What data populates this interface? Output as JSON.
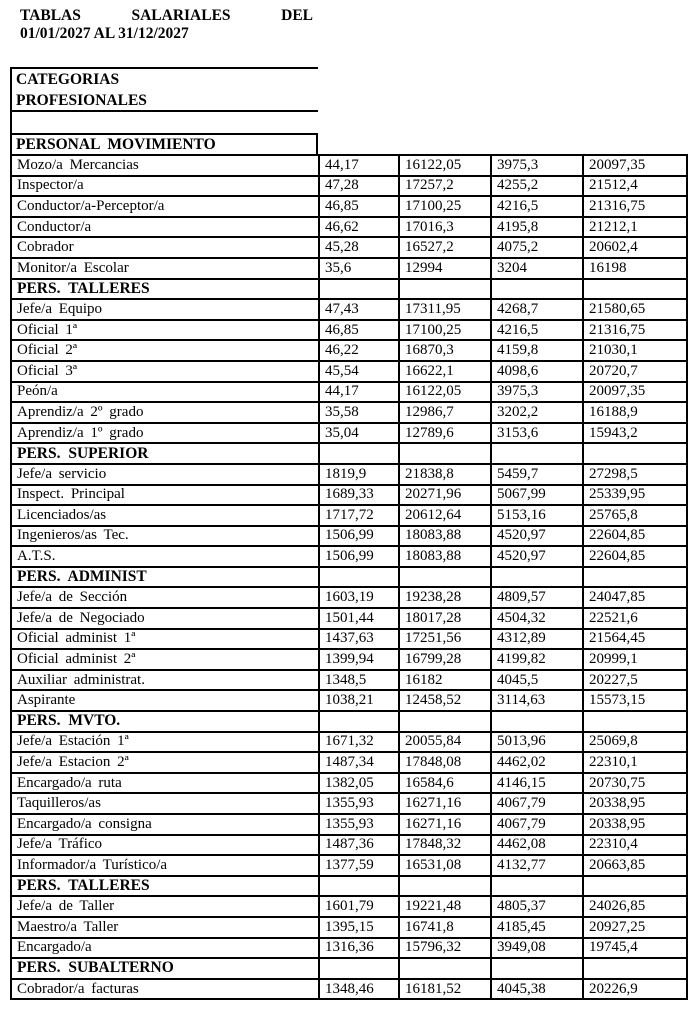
{
  "title": {
    "line1_words": [
      "TABLAS",
      "SALARIALES",
      "DEL"
    ],
    "line2": "01/01/2027 AL 31/12/2027"
  },
  "category_header": {
    "line1": "CATEGORIAS",
    "line2": "PROFESIONALES"
  },
  "table": {
    "groups": [
      {
        "header": "PERSONAL MOVIMIENTO",
        "placement": "outside",
        "rows": [
          {
            "label": "Mozo/a Mercancias",
            "values": [
              "44,17",
              "16122,05",
              "3975,3",
              "20097,35"
            ]
          },
          {
            "label": "Inspector/a",
            "values": [
              "47,28",
              "17257,2",
              "4255,2",
              "21512,4"
            ]
          },
          {
            "label": "Conductor/a-Perceptor/a",
            "values": [
              "46,85",
              "17100,25",
              "4216,5",
              "21316,75"
            ]
          },
          {
            "label": "Conductor/a",
            "values": [
              "46,62",
              "17016,3",
              "4195,8",
              "21212,1"
            ]
          },
          {
            "label": "Cobrador",
            "values": [
              "45,28",
              "16527,2",
              "4075,2",
              "20602,4"
            ]
          },
          {
            "label": "Monitor/a Escolar",
            "values": [
              "35,6",
              "12994",
              "3204",
              "16198"
            ]
          }
        ]
      },
      {
        "header": "PERS. TALLERES",
        "placement": "inside",
        "rows": [
          {
            "label": "Jefe/a Equipo",
            "values": [
              "47,43",
              "17311,95",
              "4268,7",
              "21580,65"
            ]
          },
          {
            "label": "Oficial 1ª",
            "values": [
              "46,85",
              "17100,25",
              "4216,5",
              "21316,75"
            ]
          },
          {
            "label": "Oficial 2ª",
            "values": [
              "46,22",
              "16870,3",
              "4159,8",
              "21030,1"
            ]
          },
          {
            "label": "Oficial 3ª",
            "values": [
              "45,54",
              "16622,1",
              "4098,6",
              "20720,7"
            ]
          },
          {
            "label": "Peón/a",
            "values": [
              "44,17",
              "16122,05",
              "3975,3",
              "20097,35"
            ]
          },
          {
            "label": "Aprendiz/a 2º grado",
            "values": [
              "35,58",
              "12986,7",
              "3202,2",
              "16188,9"
            ]
          },
          {
            "label": "Aprendiz/a 1º grado",
            "values": [
              "35,04",
              "12789,6",
              "3153,6",
              "15943,2"
            ]
          }
        ]
      },
      {
        "header": "PERS. SUPERIOR",
        "placement": "inside",
        "rows": [
          {
            "label": "Jefe/a servicio",
            "values": [
              "1819,9",
              "21838,8",
              "5459,7",
              "27298,5"
            ]
          },
          {
            "label": "Inspect. Principal",
            "values": [
              "1689,33",
              "20271,96",
              "5067,99",
              "25339,95"
            ]
          },
          {
            "label": "Licenciados/as",
            "values": [
              "1717,72",
              "20612,64",
              "5153,16",
              "25765,8"
            ]
          },
          {
            "label": "Ingenieros/as Tec.",
            "values": [
              "1506,99",
              "18083,88",
              "4520,97",
              "22604,85"
            ]
          },
          {
            "label": "A.T.S.",
            "values": [
              "1506,99",
              "18083,88",
              "4520,97",
              "22604,85"
            ]
          }
        ]
      },
      {
        "header": "PERS. ADMINIST",
        "placement": "inside",
        "rows": [
          {
            "label": "Jefe/a de Sección",
            "values": [
              "1603,19",
              "19238,28",
              "4809,57",
              "24047,85"
            ]
          },
          {
            "label": "Jefe/a de Negociado",
            "values": [
              "1501,44",
              "18017,28",
              "4504,32",
              "22521,6"
            ]
          },
          {
            "label": "Oficial administ 1ª",
            "values": [
              "1437,63",
              "17251,56",
              "4312,89",
              "21564,45"
            ]
          },
          {
            "label": "Oficial administ 2ª",
            "values": [
              "1399,94",
              "16799,28",
              "4199,82",
              "20999,1"
            ]
          },
          {
            "label": "Auxiliar administrat.",
            "values": [
              "1348,5",
              "16182",
              "4045,5",
              "20227,5"
            ]
          },
          {
            "label": "Aspirante",
            "values": [
              "1038,21",
              "12458,52",
              "3114,63",
              "15573,15"
            ]
          }
        ]
      },
      {
        "header": "PERS. MVTO.",
        "placement": "inside",
        "rows": [
          {
            "label": "Jefe/a Estación 1ª",
            "values": [
              "1671,32",
              "20055,84",
              "5013,96",
              "25069,8"
            ]
          },
          {
            "label": "Jefe/a Estacion 2ª",
            "values": [
              "1487,34",
              "17848,08",
              "4462,02",
              "22310,1"
            ]
          },
          {
            "label": "Encargado/a ruta",
            "values": [
              "1382,05",
              "16584,6",
              "4146,15",
              "20730,75"
            ]
          },
          {
            "label": "Taquilleros/as",
            "values": [
              "1355,93",
              "16271,16",
              "4067,79",
              "20338,95"
            ]
          },
          {
            "label": "Encargado/a consigna",
            "values": [
              "1355,93",
              "16271,16",
              "4067,79",
              "20338,95"
            ]
          },
          {
            "label": "Jefe/a Tráfico",
            "values": [
              "1487,36",
              "17848,32",
              "4462,08",
              "22310,4"
            ]
          },
          {
            "label": "Informador/a Turístico/a",
            "values": [
              "1377,59",
              "16531,08",
              "4132,77",
              "20663,85"
            ]
          }
        ]
      },
      {
        "header": "PERS. TALLERES",
        "placement": "inside",
        "rows": [
          {
            "label": "Jefe/a de Taller",
            "values": [
              "1601,79",
              "19221,48",
              "4805,37",
              "24026,85"
            ]
          },
          {
            "label": "Maestro/a Taller",
            "values": [
              "1395,15",
              "16741,8",
              "4185,45",
              "20927,25"
            ]
          },
          {
            "label": "Encargado/a",
            "values": [
              "1316,36",
              "15796,32",
              "3949,08",
              "19745,4"
            ]
          }
        ]
      },
      {
        "header": "PERS. SUBALTERNO",
        "placement": "inside",
        "rows": [
          {
            "label": "Cobrador/a facturas",
            "values": [
              "1348,46",
              "16181,52",
              "4045,38",
              "20226,9"
            ]
          }
        ]
      }
    ]
  }
}
